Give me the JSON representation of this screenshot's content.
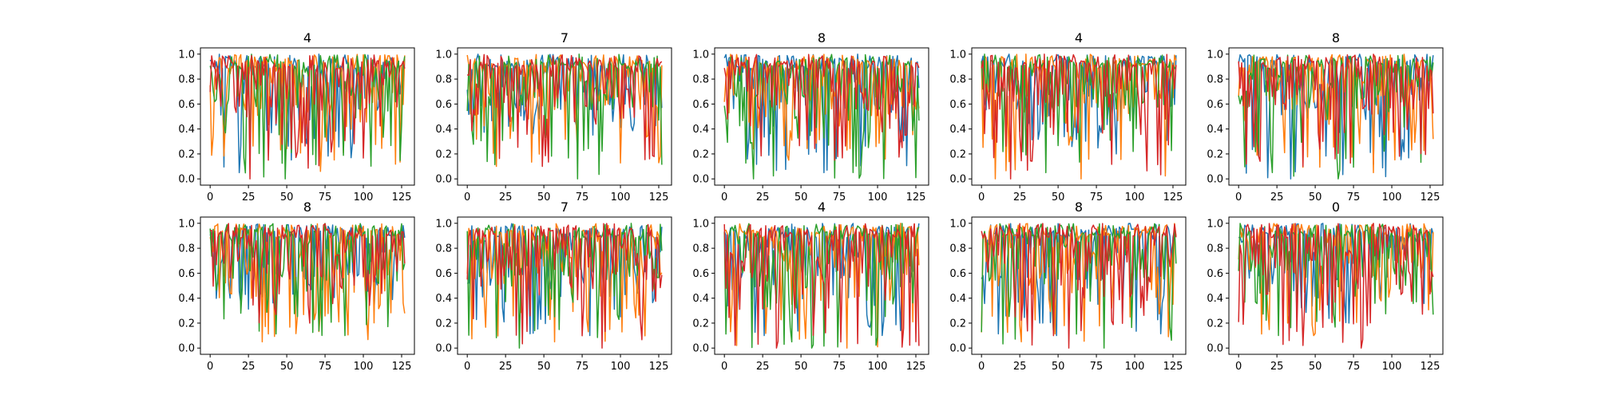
{
  "figure": {
    "background": "#ffffff",
    "series_colors": [
      "#1f77b4",
      "#ff7f0e",
      "#2ca02c",
      "#d62728"
    ]
  },
  "chart_data": [
    {
      "title": "4",
      "type": "line",
      "x_range": [
        0,
        127
      ],
      "ylim": [
        0.0,
        1.0
      ],
      "x_ticks": [
        "0",
        "25",
        "50",
        "75",
        "100",
        "125"
      ],
      "y_ticks": [
        "0.0",
        "0.2",
        "0.4",
        "0.6",
        "0.8",
        "1.0"
      ],
      "grid": false,
      "legend": "none",
      "samples_per_series": 128,
      "series_min": [
        0.05,
        0.06,
        0.0,
        0.0
      ]
    },
    {
      "title": "7",
      "type": "line",
      "x_range": [
        0,
        127
      ],
      "ylim": [
        0.0,
        1.0
      ],
      "x_ticks": [
        "0",
        "25",
        "50",
        "75",
        "100",
        "125"
      ],
      "y_ticks": [
        "0.0",
        "0.2",
        "0.4",
        "0.6",
        "0.8",
        "1.0"
      ],
      "grid": false,
      "legend": "none",
      "samples_per_series": 128,
      "series_min": [
        0.35,
        0.1,
        0.0,
        0.1
      ]
    },
    {
      "title": "8",
      "type": "line",
      "x_range": [
        0,
        127
      ],
      "ylim": [
        0.0,
        1.0
      ],
      "x_ticks": [
        "0",
        "25",
        "50",
        "75",
        "100",
        "125"
      ],
      "y_ticks": [
        "0.0",
        "0.2",
        "0.4",
        "0.6",
        "0.8",
        "1.0"
      ],
      "grid": false,
      "legend": "none",
      "samples_per_series": 128,
      "series_min": [
        0.05,
        0.15,
        0.0,
        0.15
      ]
    },
    {
      "title": "4",
      "type": "line",
      "x_range": [
        0,
        127
      ],
      "ylim": [
        0.0,
        1.0
      ],
      "x_ticks": [
        "0",
        "25",
        "50",
        "75",
        "100",
        "125"
      ],
      "y_ticks": [
        "0.0",
        "0.2",
        "0.4",
        "0.6",
        "0.8",
        "1.0"
      ],
      "grid": false,
      "legend": "none",
      "samples_per_series": 128,
      "series_min": [
        0.2,
        0.0,
        0.05,
        0.0
      ]
    },
    {
      "title": "8",
      "type": "line",
      "x_range": [
        0,
        127
      ],
      "ylim": [
        0.0,
        1.0
      ],
      "x_ticks": [
        "0",
        "25",
        "50",
        "75",
        "100",
        "125"
      ],
      "y_ticks": [
        "0.0",
        "0.2",
        "0.4",
        "0.6",
        "0.8",
        "1.0"
      ],
      "grid": false,
      "legend": "none",
      "samples_per_series": 128,
      "series_min": [
        0.0,
        0.05,
        0.0,
        0.1
      ]
    },
    {
      "title": "8",
      "type": "line",
      "x_range": [
        0,
        127
      ],
      "ylim": [
        0.0,
        1.0
      ],
      "x_ticks": [
        "0",
        "25",
        "50",
        "75",
        "100",
        "125"
      ],
      "y_ticks": [
        "0.0",
        "0.2",
        "0.4",
        "0.6",
        "0.8",
        "1.0"
      ],
      "grid": false,
      "legend": "none",
      "samples_per_series": 128,
      "series_min": [
        0.3,
        0.05,
        0.1,
        0.2
      ]
    },
    {
      "title": "7",
      "type": "line",
      "x_range": [
        0,
        127
      ],
      "ylim": [
        0.0,
        1.0
      ],
      "x_ticks": [
        "0",
        "25",
        "50",
        "75",
        "100",
        "125"
      ],
      "y_ticks": [
        "0.0",
        "0.2",
        "0.4",
        "0.6",
        "0.8",
        "1.0"
      ],
      "grid": false,
      "legend": "none",
      "samples_per_series": 128,
      "series_min": [
        0.1,
        0.05,
        0.0,
        0.0
      ]
    },
    {
      "title": "4",
      "type": "line",
      "x_range": [
        0,
        127
      ],
      "ylim": [
        0.0,
        1.0
      ],
      "x_ticks": [
        "0",
        "25",
        "50",
        "75",
        "100",
        "125"
      ],
      "y_ticks": [
        "0.0",
        "0.2",
        "0.4",
        "0.6",
        "0.8",
        "1.0"
      ],
      "grid": false,
      "legend": "none",
      "samples_per_series": 128,
      "series_min": [
        0.1,
        0.0,
        0.0,
        0.0
      ]
    },
    {
      "title": "8",
      "type": "line",
      "x_range": [
        0,
        127
      ],
      "ylim": [
        0.0,
        1.0
      ],
      "x_ticks": [
        "0",
        "25",
        "50",
        "75",
        "100",
        "125"
      ],
      "y_ticks": [
        "0.0",
        "0.2",
        "0.4",
        "0.6",
        "0.8",
        "1.0"
      ],
      "grid": false,
      "legend": "none",
      "samples_per_series": 128,
      "series_min": [
        0.1,
        0.05,
        0.0,
        0.0
      ]
    },
    {
      "title": "0",
      "type": "line",
      "x_range": [
        0,
        127
      ],
      "ylim": [
        0.0,
        1.0
      ],
      "x_ticks": [
        "0",
        "25",
        "50",
        "75",
        "100",
        "125"
      ],
      "y_ticks": [
        "0.0",
        "0.2",
        "0.4",
        "0.6",
        "0.8",
        "1.0"
      ],
      "grid": false,
      "legend": "none",
      "samples_per_series": 128,
      "series_min": [
        0.2,
        0.1,
        0.1,
        0.0
      ]
    }
  ]
}
